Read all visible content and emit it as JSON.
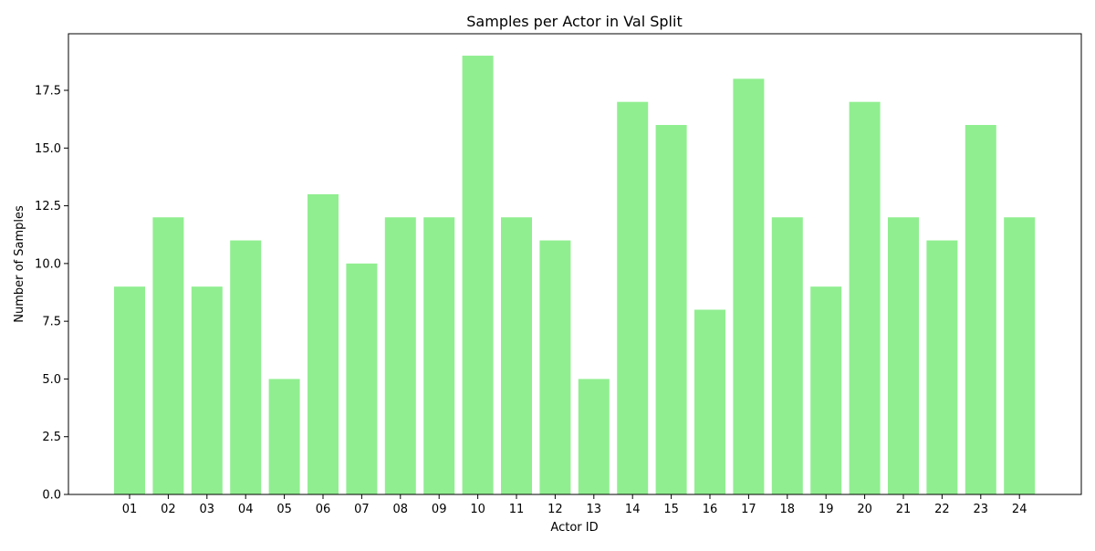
{
  "chart_data": {
    "type": "bar",
    "title": "Samples per Actor in Val Split",
    "xlabel": "Actor ID",
    "ylabel": "Number of Samples",
    "categories": [
      "01",
      "02",
      "03",
      "04",
      "05",
      "06",
      "07",
      "08",
      "09",
      "10",
      "11",
      "12",
      "13",
      "14",
      "15",
      "16",
      "17",
      "18",
      "19",
      "20",
      "21",
      "22",
      "23",
      "24"
    ],
    "values": [
      9,
      12,
      9,
      11,
      5,
      13,
      10,
      12,
      12,
      19,
      12,
      11,
      5,
      17,
      16,
      8,
      18,
      12,
      9,
      17,
      12,
      11,
      16,
      12
    ],
    "ylim": [
      0,
      19.95
    ],
    "yticks": [
      0.0,
      2.5,
      5.0,
      7.5,
      10.0,
      12.5,
      15.0,
      17.5
    ],
    "ytick_labels": [
      "0.0",
      "2.5",
      "5.0",
      "7.5",
      "10.0",
      "12.5",
      "15.0",
      "17.5"
    ],
    "bar_color": "#90ee90",
    "grid": false,
    "legend": "none"
  }
}
